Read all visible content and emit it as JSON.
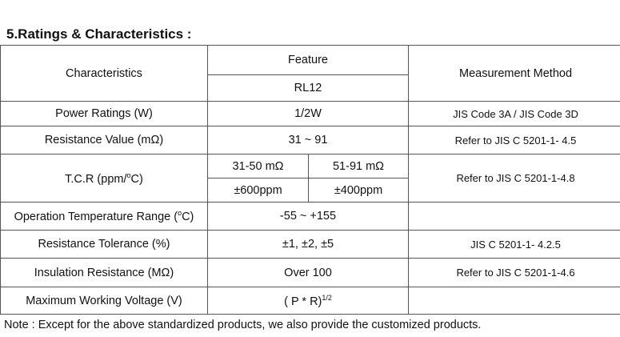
{
  "title": "5.Ratings & Characteristics :",
  "header": {
    "characteristics": "Characteristics",
    "feature": "Feature",
    "model": "RL12",
    "method": "Measurement Method"
  },
  "rows": [
    {
      "name": "Power Ratings (W)",
      "value": "1/2W",
      "method": "JIS Code 3A / JIS Code 3D"
    },
    {
      "name": "Resistance Value (mΩ)",
      "value": "31 ~ 91",
      "method": "Refer to JIS C 5201-1- 4.5"
    },
    {
      "name": "T.C.R (ppm/",
      "name_sup": "o",
      "name_tail": "C)",
      "ranges": [
        "31-50 mΩ",
        "51-91 mΩ"
      ],
      "values": [
        "±600ppm",
        "±400ppm"
      ],
      "method": "Refer to JIS C 5201-1-4.8"
    },
    {
      "name": "Operation Temperature Range (",
      "name_sup": "o",
      "name_tail": "C)",
      "value": "-55 ~ +155",
      "method": ""
    },
    {
      "name": "Resistance Tolerance (%)",
      "value": "±1, ±2, ±5",
      "method": "JIS C 5201-1- 4.2.5"
    },
    {
      "name": "Insulation Resistance (MΩ)",
      "value": "Over 100",
      "method": "Refer to JIS C 5201-1-4.6"
    },
    {
      "name": "Maximum Working Voltage (V)",
      "value": "( P * R)",
      "value_sup": "1/2",
      "method": ""
    }
  ],
  "note": "Note : Except for the above standardized products, we also provide the customized products."
}
